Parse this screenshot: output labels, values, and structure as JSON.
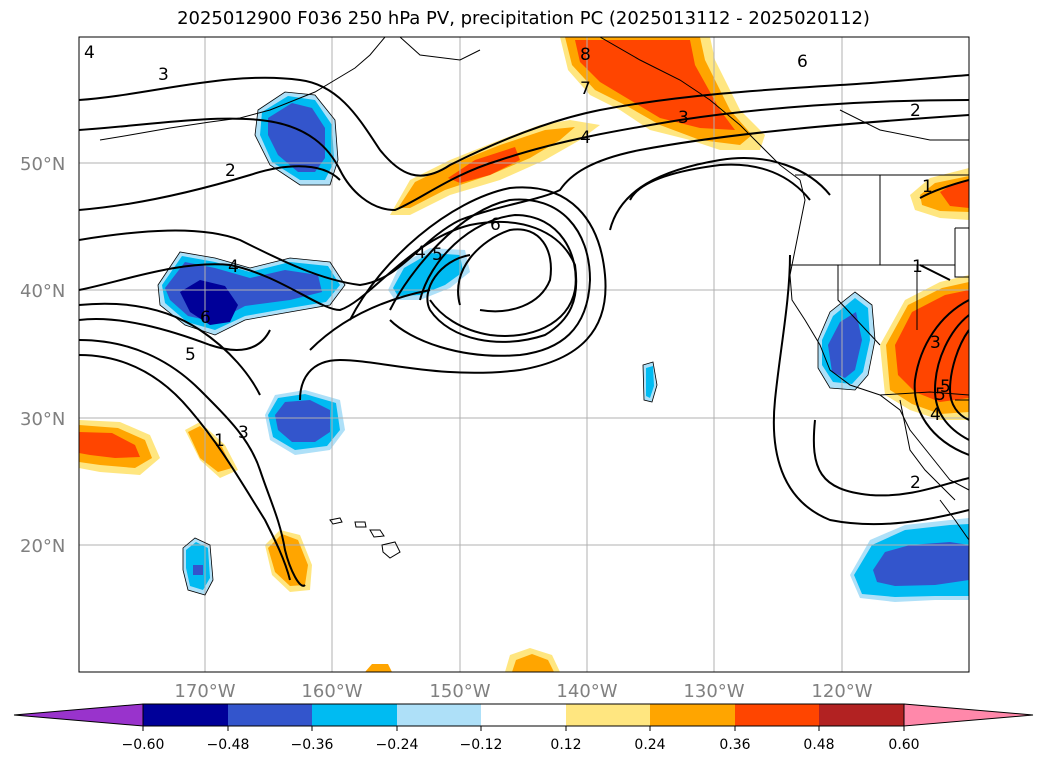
{
  "title": "2025012900 F036 250 hPa PV, precipitation PC (2025013112 - 2025020112)",
  "map": {
    "lat_labels": [
      "50°N",
      "40°N",
      "30°N",
      "20°N"
    ],
    "lon_labels": [
      "170°W",
      "160°W",
      "150°W",
      "140°W",
      "130°W",
      "120°W"
    ],
    "pv_contour_labels": [
      "4",
      "3",
      "2",
      "4",
      "6",
      "5",
      "4",
      "5",
      "6",
      "7",
      "8",
      "6",
      "2",
      "4",
      "1",
      "1",
      "3",
      "5",
      "2",
      "3",
      "1",
      "4",
      "5",
      "3"
    ]
  },
  "colorbar": {
    "tick_labels": [
      "−0.60",
      "−0.48",
      "−0.36",
      "−0.24",
      "−0.12",
      "0.12",
      "0.24",
      "0.36",
      "0.48",
      "0.60"
    ],
    "colors": [
      "#9933cc",
      "#000099",
      "#3355cc",
      "#00bbf2",
      "#aee0f8",
      "#ffffff",
      "#ffe680",
      "#ffa500",
      "#ff4500",
      "#b22222",
      "#ff88aa"
    ]
  }
}
